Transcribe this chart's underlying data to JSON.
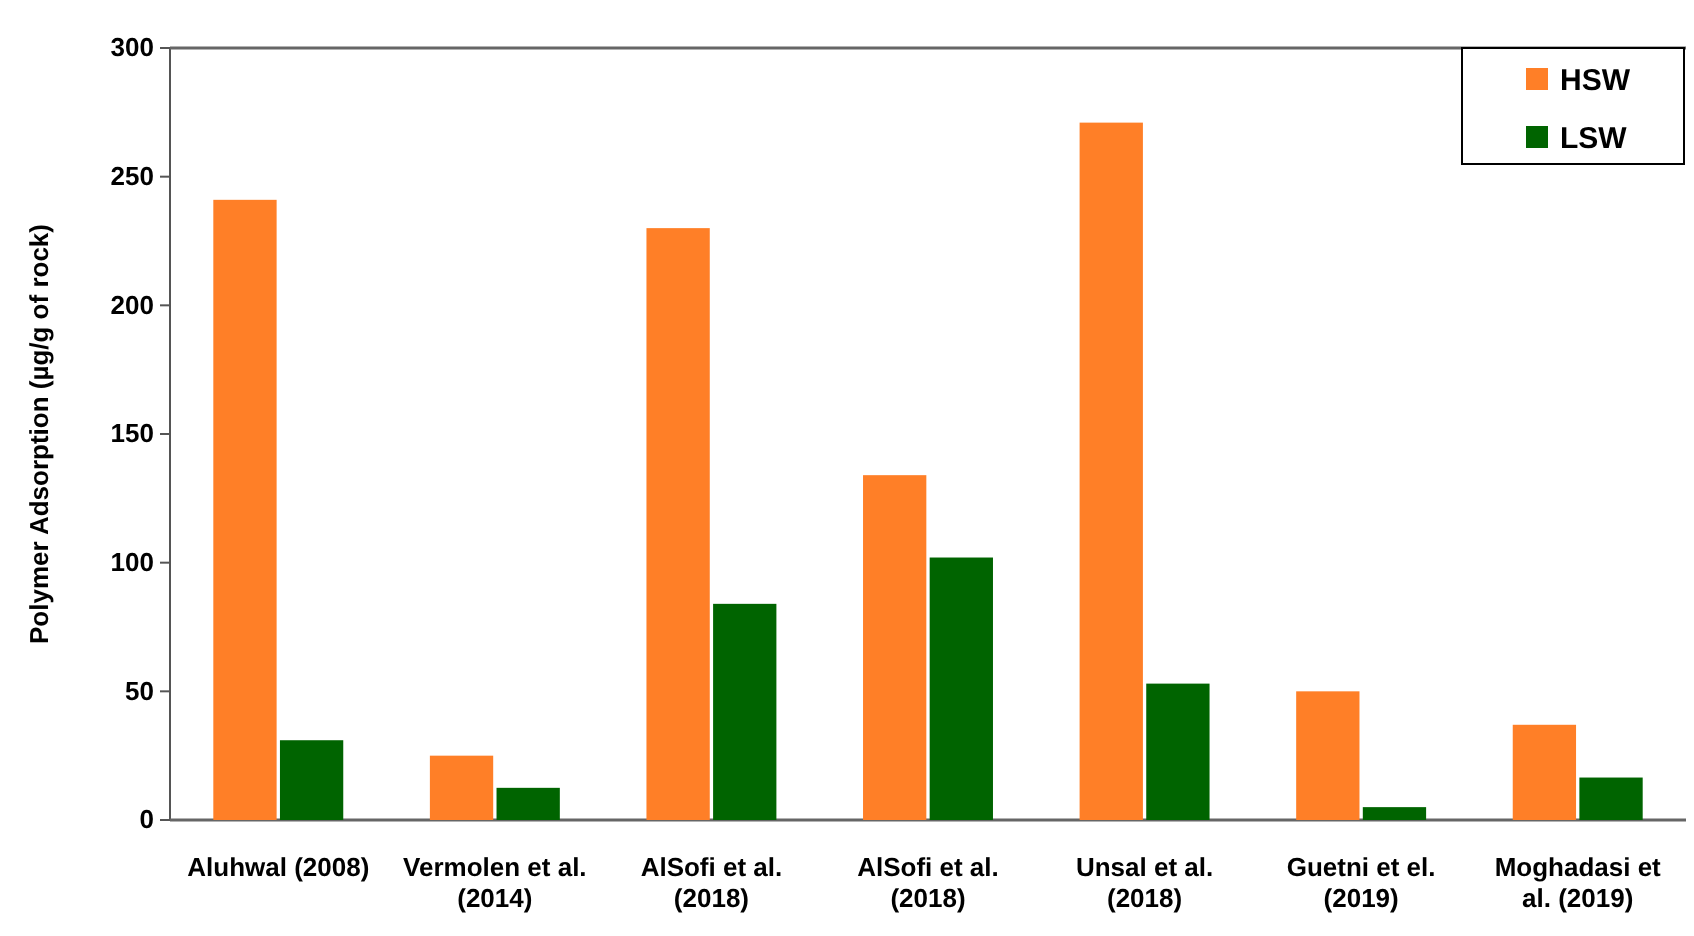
{
  "chart_data": {
    "type": "bar",
    "ylabel": "Polymer Adsorption (µg/g of rock)",
    "categories": [
      "Aluhwal (2008)",
      "Vermolen et al. (2014)",
      "AlSofi et al. (2018)",
      "AlSofi et al. (2018)",
      "Unsal et al. (2018)",
      "Guetni et el. (2019)",
      "Moghadasi et al. (2019)"
    ],
    "series": [
      {
        "name": "HSW",
        "color": "#ff7f27",
        "values": [
          241,
          25,
          230,
          134,
          271,
          50,
          37
        ]
      },
      {
        "name": "LSW",
        "color": "#006400",
        "values": [
          31,
          12.5,
          84,
          102,
          53,
          5,
          16.5
        ]
      }
    ],
    "ylim": [
      0,
      300
    ],
    "yticks": [
      0,
      50,
      100,
      150,
      200,
      250,
      300
    ],
    "grid": false,
    "legend": "top right"
  }
}
